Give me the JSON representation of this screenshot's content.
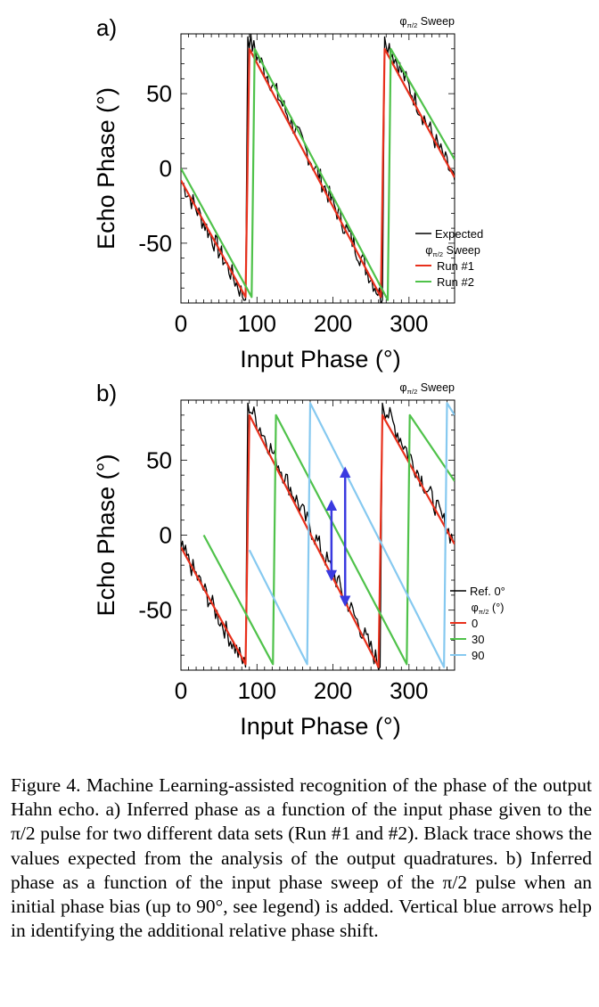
{
  "caption": {
    "label": "Figure 4.",
    "text": "Machine Learning-assisted recognition of the phase of the output Hahn echo. a) Inferred phase as a function of the input phase given to the π/2 pulse for two different data sets (Run #1 and #2). Black trace shows the values expected from the analysis of the output quadratures. b) Inferred phase as a function of the input phase sweep of the π/2 pulse when an initial phase bias (up to 90°, see legend) is added. Vertical blue arrows help in identifying the additional relative phase shift."
  },
  "colors": {
    "black": "#000000",
    "red": "#e8301c",
    "green": "#4fc24a",
    "lightblue": "#86c9f0",
    "arrow": "#3a3ae0"
  },
  "chart_data": [
    {
      "panel_label": "a)",
      "type": "line",
      "top_axis_label": "φπ/2 Sweep",
      "xlabel": "Input Phase (°)",
      "ylabel": "Echo Phase (°)",
      "xlim": [
        0,
        360
      ],
      "ylim": [
        -90,
        90
      ],
      "xticks": [
        "0",
        "100",
        "200",
        "300"
      ],
      "yticks": [
        "50",
        "0",
        "-50"
      ],
      "legend": {
        "position": "bottom-right",
        "first": "Expected",
        "header": "φπ/2 Sweep",
        "entries": [
          "Run #1",
          "Run #2"
        ]
      },
      "series": [
        {
          "name": "Expected",
          "color": "black",
          "noisy": true,
          "x": [
            0,
            85,
            88,
            265,
            268,
            360
          ],
          "y": [
            -8,
            -88,
            88,
            -88,
            88,
            -8
          ]
        },
        {
          "name": "Run #1",
          "color": "red",
          "x": [
            0,
            85,
            90,
            263,
            268,
            360
          ],
          "y": [
            -8,
            -86,
            80,
            -86,
            80,
            -6
          ]
        },
        {
          "name": "Run #2",
          "color": "green",
          "x": [
            0,
            93,
            97,
            272,
            276,
            360
          ],
          "y": [
            0,
            -86,
            80,
            -88,
            80,
            6
          ]
        }
      ]
    },
    {
      "panel_label": "b)",
      "type": "line",
      "top_axis_label": "φπ/2 Sweep",
      "xlabel": "Input Phase (°)",
      "ylabel": "Echo Phase (°)",
      "xlim": [
        0,
        360
      ],
      "ylim": [
        -90,
        90
      ],
      "xticks": [
        "0",
        "100",
        "200",
        "300"
      ],
      "yticks": [
        "50",
        "0",
        "-50"
      ],
      "legend": {
        "position": "bottom-right",
        "first": "Ref. 0°",
        "header": "φπ/2 (°)",
        "entries": [
          "0",
          "30",
          "90"
        ]
      },
      "series": [
        {
          "name": "Ref. 0°",
          "color": "black",
          "noisy": true,
          "x": [
            0,
            85,
            88,
            262,
            265,
            360
          ],
          "y": [
            -8,
            -88,
            88,
            -88,
            88,
            -5
          ]
        },
        {
          "name": "0",
          "color": "red",
          "x": [
            0,
            85,
            90,
            260,
            265,
            360
          ],
          "y": [
            -8,
            -86,
            80,
            -88,
            80,
            -6
          ]
        },
        {
          "name": "30",
          "color": "green",
          "x": [
            30,
            121,
            125,
            297,
            301,
            360
          ],
          "y": [
            0,
            -86,
            80,
            -86,
            80,
            36
          ]
        },
        {
          "name": "90",
          "color": "lightblue",
          "x": [
            90,
            166,
            170,
            346,
            350,
            360
          ],
          "y": [
            -10,
            -86,
            88,
            -88,
            88,
            80
          ]
        }
      ],
      "arrows": [
        {
          "x": 198,
          "y_from": -27,
          "y_to": 20
        },
        {
          "x": 216,
          "y_from": -44,
          "y_to": 42
        }
      ]
    }
  ]
}
